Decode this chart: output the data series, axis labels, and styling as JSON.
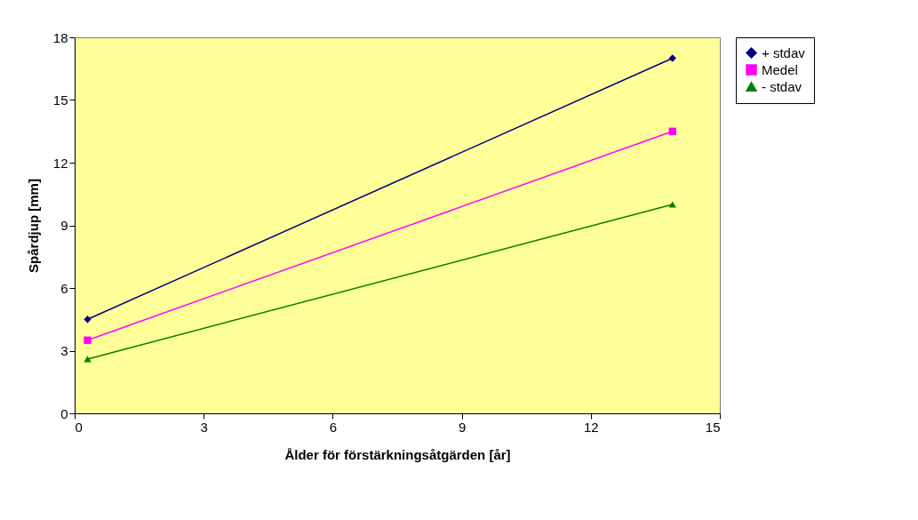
{
  "chart_data": {
    "type": "line",
    "xlabel": "Ålder för förstärkningsåtgärden [år]",
    "ylabel": "Spårdjup [mm]",
    "x": [
      0.3,
      13.9
    ],
    "series": [
      {
        "name": "+ stdav",
        "color": "#000080",
        "marker": "diamond",
        "values": [
          4.5,
          17
        ]
      },
      {
        "name": "Medel",
        "color": "#ff00ff",
        "marker": "square",
        "values": [
          3.5,
          13.5
        ]
      },
      {
        "name": "- stdav",
        "color": "#008000",
        "marker": "triangle",
        "values": [
          2.6,
          10
        ]
      }
    ],
    "xlim": [
      0,
      15
    ],
    "xticks": [
      0,
      3,
      6,
      9,
      12,
      15
    ],
    "ylim": [
      0,
      18
    ],
    "yticks": [
      0,
      3,
      6,
      9,
      12,
      15,
      18
    ],
    "grid": false,
    "legend": "right",
    "line_style": "solid"
  }
}
